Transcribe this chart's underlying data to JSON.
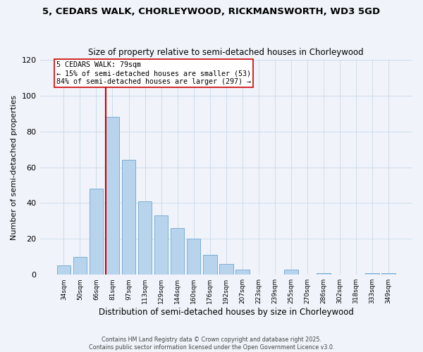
{
  "title": "5, CEDARS WALK, CHORLEYWOOD, RICKMANSWORTH, WD3 5GD",
  "subtitle": "Size of property relative to semi-detached houses in Chorleywood",
  "xlabel": "Distribution of semi-detached houses by size in Chorleywood",
  "ylabel": "Number of semi-detached properties",
  "bar_labels": [
    "34sqm",
    "50sqm",
    "66sqm",
    "81sqm",
    "97sqm",
    "113sqm",
    "129sqm",
    "144sqm",
    "160sqm",
    "176sqm",
    "192sqm",
    "207sqm",
    "223sqm",
    "239sqm",
    "255sqm",
    "270sqm",
    "286sqm",
    "302sqm",
    "318sqm",
    "333sqm",
    "349sqm"
  ],
  "bar_values": [
    5,
    10,
    48,
    88,
    64,
    41,
    33,
    26,
    20,
    11,
    6,
    3,
    0,
    0,
    3,
    0,
    1,
    0,
    0,
    1,
    1
  ],
  "bar_color": "#b8d4ec",
  "bar_edge_color": "#7aaed4",
  "vline_color": "#cc0000",
  "annotation_title": "5 CEDARS WALK: 79sqm",
  "annotation_line1": "← 15% of semi-detached houses are smaller (53)",
  "annotation_line2": "84% of semi-detached houses are larger (297) →",
  "ylim": [
    0,
    120
  ],
  "yticks": [
    0,
    20,
    40,
    60,
    80,
    100,
    120
  ],
  "background_color": "#f0f4fa",
  "grid_color": "#c8d8e8",
  "footer_line1": "Contains HM Land Registry data © Crown copyright and database right 2025.",
  "footer_line2": "Contains public sector information licensed under the Open Government Licence v3.0.",
  "vline_bar_index": 3
}
